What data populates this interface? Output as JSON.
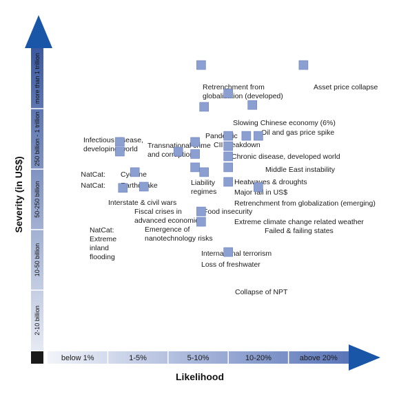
{
  "chart_data": {
    "type": "scatter",
    "xlabel": "Likelihood",
    "ylabel": "Severity (in US$)",
    "x_categories": [
      "below 1%",
      "1-5%",
      "5-10%",
      "10-20%",
      "above 20%"
    ],
    "y_categories": [
      "2-10 billion",
      "10-50 billion",
      "50-250 billion",
      "250 billion - 1 trillion",
      "more than 1 trillion"
    ],
    "xlim": [
      0,
      5
    ],
    "ylim": [
      0,
      5
    ],
    "colors": {
      "marker": "#8c9fd1",
      "marker_edge": "#6a7fbd",
      "arrow": "#1a56a8",
      "origin": "#1a1a1a"
    },
    "points": [
      {
        "label": "Retrenchment from globalization (developed)",
        "x": 2.55,
        "y": 4.72
      },
      {
        "label": "Asset price collapse",
        "x": 4.25,
        "y": 4.72
      },
      {
        "label": "Slowing Chinese economy (6%)",
        "x": 3.0,
        "y": 4.25
      },
      {
        "label": "Oil and gas price spike",
        "x": 3.4,
        "y": 4.06
      },
      {
        "label": "Pandemic",
        "x": 2.6,
        "y": 4.03
      },
      {
        "label": "CII breakdown",
        "x": 3.0,
        "y": 3.55
      },
      {
        "label": "Transnational crime and corruption",
        "x": 2.45,
        "y": 3.45
      },
      {
        "label": "Infectious disease, developing world",
        "x": 2.17,
        "y": 3.29
      },
      {
        "label": "Chronic disease, developed world",
        "x": 3.3,
        "y": 3.55
      },
      {
        "label": "Middle East instability",
        "x": 3.5,
        "y": 3.55
      },
      {
        "label": "NatCat: Cyclone",
        "x": 1.2,
        "y": 3.45
      },
      {
        "label": "NatCat: Earthquake",
        "x": 1.2,
        "y": 3.29
      },
      {
        "label": "Liability regimes",
        "x": 2.45,
        "y": 3.25
      },
      {
        "label": "Heatwaves & droughts",
        "x": 3.0,
        "y": 3.38
      },
      {
        "label": "Major fall in US$",
        "x": 3.0,
        "y": 3.21
      },
      {
        "label": "Interstate & civil wars",
        "x": 2.45,
        "y": 3.03
      },
      {
        "label": "Retrenchment from globalization (emerging)",
        "x": 3.0,
        "y": 3.03
      },
      {
        "label": "Fiscal crises in advanced economies",
        "x": 1.45,
        "y": 2.95
      },
      {
        "label": "Food insecurity",
        "x": 2.6,
        "y": 2.95
      },
      {
        "label": "Extreme climate change related weather",
        "x": 3.0,
        "y": 2.79
      },
      {
        "label": "Failed & failing states",
        "x": 3.5,
        "y": 2.7
      },
      {
        "label": "NatCat: Extreme inland flooding",
        "x": 1.25,
        "y": 2.69
      },
      {
        "label": "Emergence of nanotechnology risks",
        "x": 1.6,
        "y": 2.71
      },
      {
        "label": "International terrorism",
        "x": 2.55,
        "y": 2.3
      },
      {
        "label": "Loss of freshwater",
        "x": 2.55,
        "y": 2.13
      },
      {
        "label": "Collapse of NPT",
        "x": 3.0,
        "y": 1.63
      }
    ]
  },
  "labels": {
    "retrench_dev": [
      "Retrenchment from",
      "globalization (developed)"
    ],
    "asset": [
      "Asset price collapse"
    ],
    "china": [
      "Slowing Chinese economy (6%)"
    ],
    "oil": [
      "Oil and gas price spike"
    ],
    "pandemic": [
      "Pandemic"
    ],
    "cii": [
      "CII breakdown"
    ],
    "crime": [
      "Transnational crime",
      "and corruption"
    ],
    "infect": [
      "Infectious disease,",
      "developing world"
    ],
    "chronic": [
      "Chronic disease, developed world"
    ],
    "mideast": [
      "Middle East instability"
    ],
    "cyclone_a": [
      "NatCat:"
    ],
    "cyclone_b": [
      "Cyclone"
    ],
    "quake_a": [
      "NatCat:"
    ],
    "quake_b": [
      "Earthquake"
    ],
    "liability": [
      "Liability",
      "regimes"
    ],
    "heat": [
      "Heatwaves & droughts"
    ],
    "usd": [
      "Major fall in US$"
    ],
    "wars": [
      "Interstate & civil wars"
    ],
    "retrench_em": [
      "Retrenchment from globalization (emerging)"
    ],
    "fiscal": [
      "Fiscal crises in",
      "advanced economies"
    ],
    "food": [
      "Food insecurity"
    ],
    "climate": [
      "Extreme climate change related weather"
    ],
    "failed": [
      "Failed & failing states"
    ],
    "flood": [
      "NatCat:",
      "Extreme",
      "inland",
      "flooding"
    ],
    "nano": [
      "Emergence of",
      "nanotechnology risks"
    ],
    "terror": [
      "International terrorism"
    ],
    "water": [
      "Loss of freshwater"
    ],
    "npt": [
      "Collapse of NPT"
    ]
  }
}
